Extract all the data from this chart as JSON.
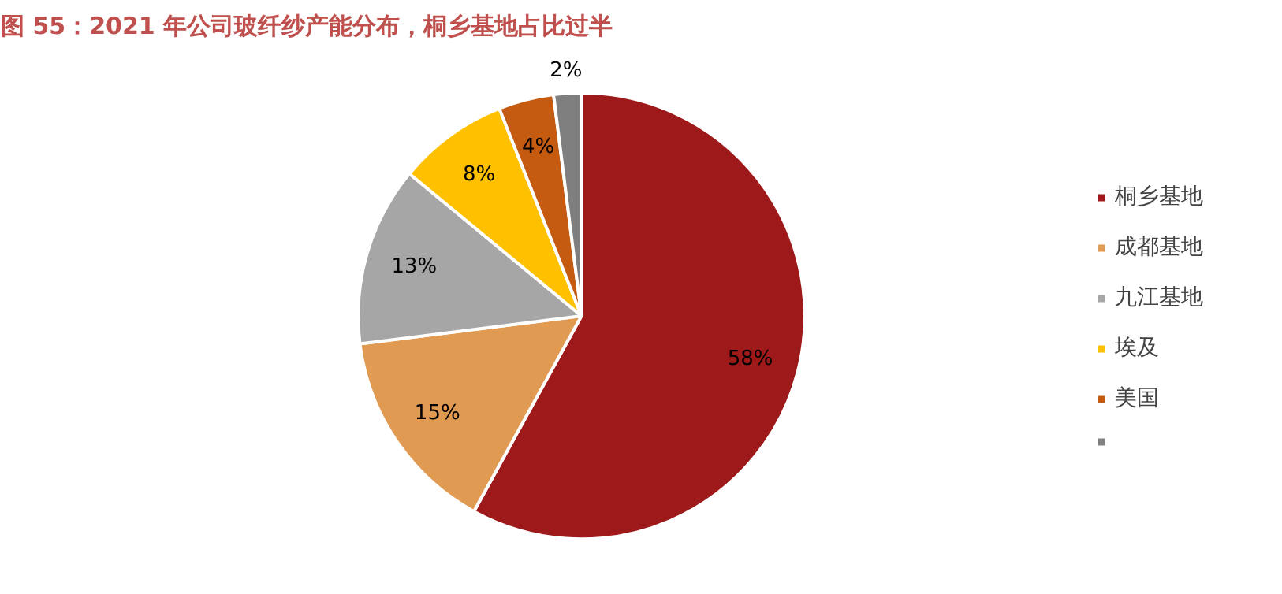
{
  "chart_data": {
    "type": "pie",
    "title": "图 55：2021 年公司玻纤纱产能分布，桐乡基地占比过半",
    "categories": [
      "桐乡基地",
      "成都基地",
      "九江基地",
      "埃及",
      "美国",
      null
    ],
    "values": [
      58,
      15,
      13,
      8,
      4,
      2
    ],
    "colors": [
      "#9e1a1a",
      "#e09a52",
      "#a6a6a6",
      "#ffc000",
      "#c55a11",
      "#7f7f7f"
    ],
    "value_labels": [
      "58%",
      "15%",
      "13%",
      "8%",
      "4%",
      "2%"
    ],
    "legend": "right"
  }
}
